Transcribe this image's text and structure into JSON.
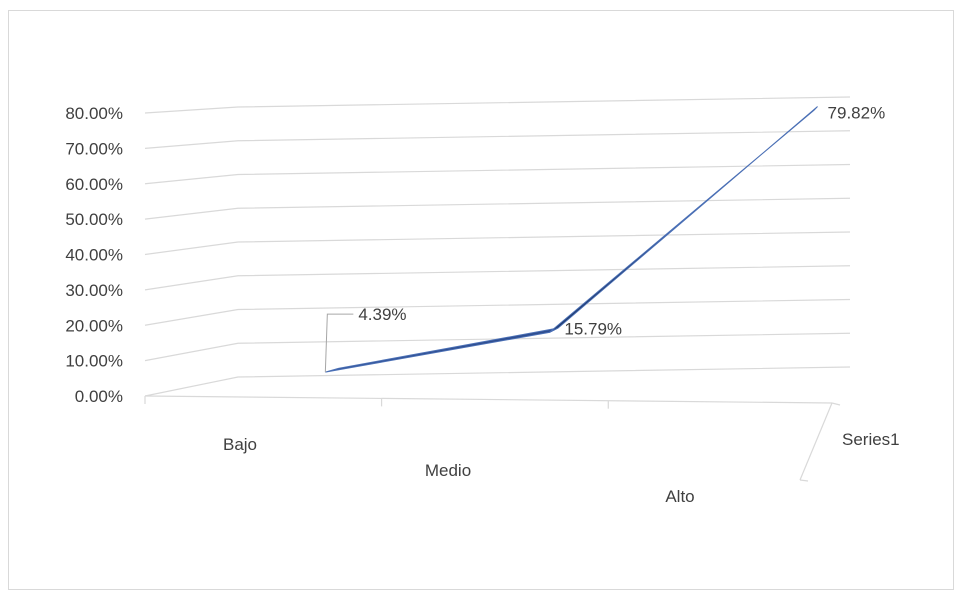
{
  "chart_data": {
    "type": "line",
    "subtype": "3d-line",
    "categories": [
      "Bajo",
      "Medio",
      "Alto"
    ],
    "series": [
      {
        "name": "Series1",
        "values": [
          4.39,
          15.79,
          79.82
        ],
        "labels": [
          "4.39%",
          "15.79%",
          "79.82%"
        ]
      }
    ],
    "y_ticks": [
      "0.00%",
      "10.00%",
      "20.00%",
      "30.00%",
      "40.00%",
      "50.00%",
      "60.00%",
      "70.00%",
      "80.00%"
    ],
    "ylim": [
      0,
      80
    ],
    "grid": true,
    "colors": {
      "series": "#2e4d8f",
      "series_dark": "#1f3a6e",
      "grid": "#d9d9d9",
      "text": "#404040"
    }
  }
}
